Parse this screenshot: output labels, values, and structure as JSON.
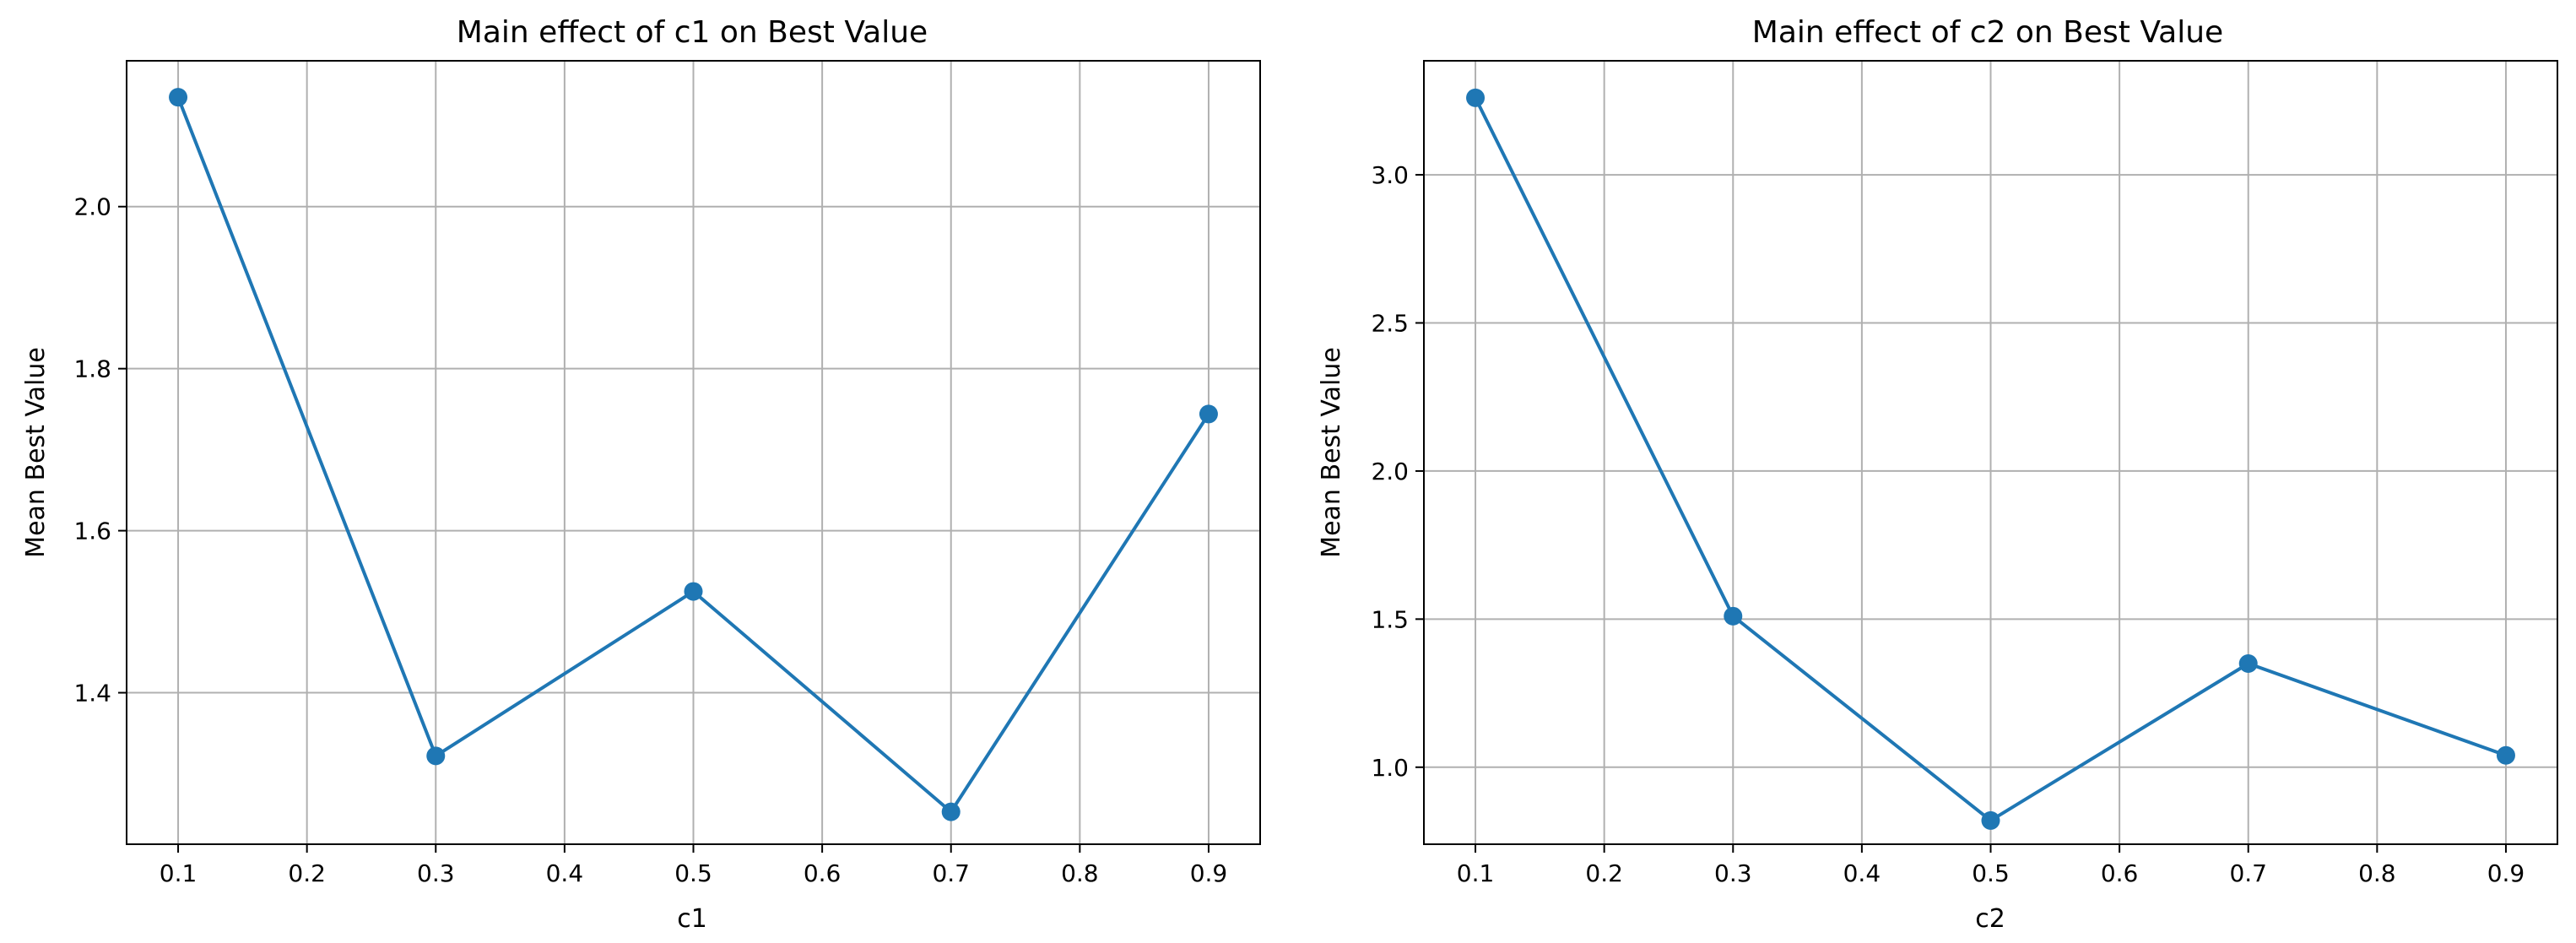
{
  "chart_data": [
    {
      "type": "line",
      "title": "Main effect of c1 on Best Value",
      "xlabel": "c1",
      "ylabel": "Mean Best Value",
      "x": [
        0.1,
        0.3,
        0.5,
        0.7,
        0.9
      ],
      "values": [
        2.135,
        1.322,
        1.525,
        1.253,
        1.744
      ],
      "xlim": [
        0.06,
        0.94
      ],
      "ylim": [
        1.213,
        2.18
      ],
      "xticks": [
        0.1,
        0.2,
        0.3,
        0.4,
        0.5,
        0.6,
        0.7,
        0.8,
        0.9
      ],
      "xtick_labels": [
        "0.1",
        "0.2",
        "0.3",
        "0.4",
        "0.5",
        "0.6",
        "0.7",
        "0.8",
        "0.9"
      ],
      "yticks": [
        1.4,
        1.6,
        1.8,
        2.0
      ],
      "ytick_labels": [
        "1.4",
        "1.6",
        "1.8",
        "2.0"
      ],
      "grid": true,
      "marker": "circle",
      "line_color": "#1f77b4"
    },
    {
      "type": "line",
      "title": "Main effect of c2 on Best Value",
      "xlabel": "c2",
      "ylabel": "Mean Best Value",
      "x": [
        0.1,
        0.3,
        0.5,
        0.7,
        0.9
      ],
      "values": [
        3.26,
        1.51,
        0.82,
        1.35,
        1.04
      ],
      "xlim": [
        0.06,
        0.94
      ],
      "ylim": [
        0.74,
        3.385
      ],
      "xticks": [
        0.1,
        0.2,
        0.3,
        0.4,
        0.5,
        0.6,
        0.7,
        0.8,
        0.9
      ],
      "xtick_labels": [
        "0.1",
        "0.2",
        "0.3",
        "0.4",
        "0.5",
        "0.6",
        "0.7",
        "0.8",
        "0.9"
      ],
      "yticks": [
        1.0,
        1.5,
        2.0,
        2.5,
        3.0
      ],
      "ytick_labels": [
        "1.0",
        "1.5",
        "2.0",
        "2.5",
        "3.0"
      ],
      "grid": true,
      "marker": "circle",
      "line_color": "#1f77b4"
    }
  ]
}
